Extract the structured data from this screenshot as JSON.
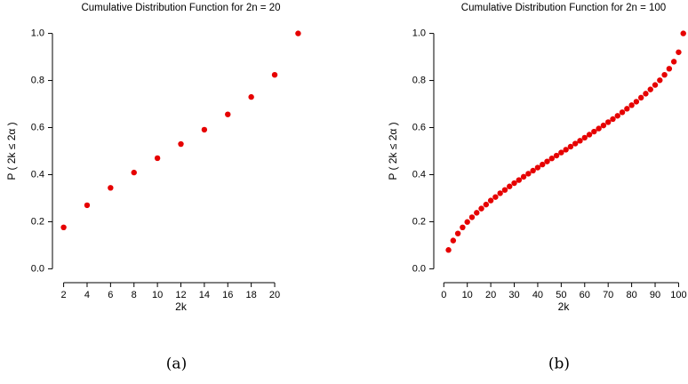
{
  "chart_data": [
    {
      "type": "scatter",
      "title": "Cumulative Distribution Function for 2n = 20",
      "x_label": "2k",
      "y_label": "P ( 2k ≤ 2α )",
      "caption": "(a)",
      "color": "#e60000",
      "x": [
        2,
        4,
        6,
        8,
        10,
        12,
        14,
        16,
        18,
        20,
        22
      ],
      "values": [
        0.176,
        0.27,
        0.344,
        0.409,
        0.47,
        0.53,
        0.591,
        0.656,
        0.73,
        0.824,
        1.0
      ],
      "xlim": [
        1.5,
        22.5
      ],
      "ylim": [
        -0.04,
        1.04
      ],
      "xticks": [
        2,
        4,
        6,
        8,
        10,
        12,
        14,
        16,
        18,
        20
      ],
      "yticks": [
        {
          "value": 0,
          "label": "0.0"
        },
        0.2,
        0.4,
        0.6,
        0.8,
        {
          "value": 1,
          "label": "1.0"
        }
      ]
    },
    {
      "type": "scatter",
      "title": "Cumulative Distribution Function for 2n = 100",
      "x_label": "2k",
      "y_label": "P ( 2k ≤ 2α )",
      "caption": "(b)",
      "color": "#e60000",
      "x": [
        2,
        4,
        6,
        8,
        10,
        12,
        14,
        16,
        18,
        20,
        22,
        24,
        26,
        28,
        30,
        32,
        34,
        36,
        38,
        40,
        42,
        44,
        46,
        48,
        50,
        52,
        54,
        56,
        58,
        60,
        62,
        64,
        66,
        68,
        70,
        72,
        74,
        76,
        78,
        80,
        82,
        84,
        86,
        88,
        90,
        92,
        94,
        96,
        98,
        100,
        102
      ],
      "values": [
        0.08,
        0.12,
        0.15,
        0.176,
        0.199,
        0.219,
        0.238,
        0.256,
        0.273,
        0.29,
        0.305,
        0.321,
        0.335,
        0.35,
        0.364,
        0.377,
        0.391,
        0.404,
        0.417,
        0.43,
        0.443,
        0.456,
        0.469,
        0.481,
        0.494,
        0.506,
        0.519,
        0.532,
        0.544,
        0.557,
        0.57,
        0.583,
        0.596,
        0.609,
        0.623,
        0.636,
        0.65,
        0.665,
        0.68,
        0.695,
        0.71,
        0.727,
        0.744,
        0.762,
        0.781,
        0.801,
        0.824,
        0.85,
        0.88,
        0.92,
        1.0
      ],
      "xlim": [
        -2,
        104
      ],
      "ylim": [
        -0.04,
        1.04
      ],
      "xticks": [
        0,
        10,
        20,
        30,
        40,
        50,
        60,
        70,
        80,
        90,
        100
      ],
      "yticks": [
        {
          "value": 0,
          "label": "0.0"
        },
        0.2,
        0.4,
        0.6,
        0.8,
        {
          "value": 1,
          "label": "1.0"
        }
      ]
    }
  ]
}
